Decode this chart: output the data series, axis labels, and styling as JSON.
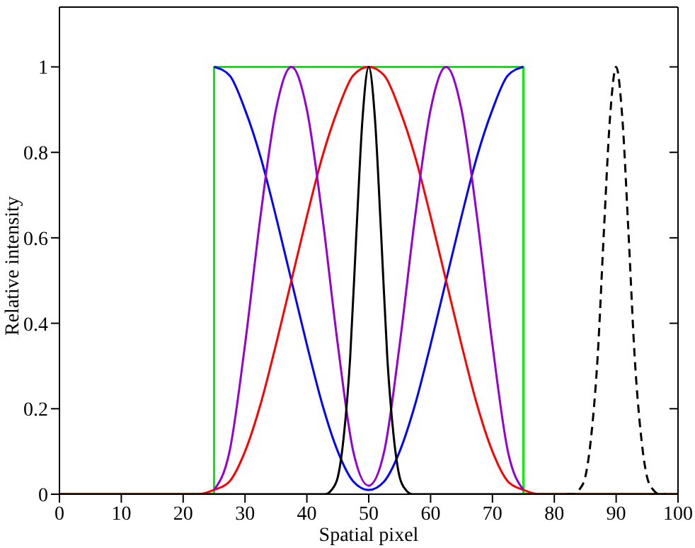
{
  "chart_data": {
    "type": "line",
    "xlabel": "Spatial pixel",
    "ylabel": "Relative intensity",
    "xlim": [
      0,
      100
    ],
    "ylim": [
      0,
      1.14
    ],
    "xticks": [
      0,
      10,
      20,
      30,
      40,
      50,
      60,
      70,
      80,
      90,
      100
    ],
    "yticks": [
      0,
      0.2,
      0.4,
      0.6,
      0.8,
      1
    ],
    "line_style": "solid",
    "series": [
      {
        "color": "#00ee00",
        "x": [
          0,
          25,
          25,
          75,
          75,
          100
        ],
        "values": [
          0,
          0,
          1,
          1,
          0,
          0
        ]
      },
      {
        "color": "#0000ff",
        "x": [
          25,
          27.5,
          30,
          32.5,
          35,
          37.5,
          40,
          42.5,
          45,
          47.5,
          50,
          52.5,
          55,
          57.5,
          60,
          62.5,
          65,
          67.5,
          70,
          72.5,
          75
        ],
        "values": [
          1,
          0.98,
          0.9,
          0.79,
          0.65,
          0.5,
          0.35,
          0.21,
          0.1,
          0.03,
          0.01,
          0.03,
          0.1,
          0.21,
          0.35,
          0.5,
          0.65,
          0.79,
          0.9,
          0.98,
          1
        ]
      },
      {
        "color": "#ff0000",
        "x": [
          0,
          20,
          22.5,
          25,
          27.5,
          30,
          32.5,
          35,
          37.5,
          40,
          42.5,
          45,
          47.5,
          50,
          52.5,
          55,
          57.5,
          60,
          62.5,
          65,
          67.5,
          70,
          72.5,
          75,
          77.5,
          80,
          100
        ],
        "values": [
          0,
          0,
          0,
          0.01,
          0.03,
          0.1,
          0.21,
          0.35,
          0.5,
          0.65,
          0.79,
          0.9,
          0.98,
          1,
          0.98,
          0.9,
          0.79,
          0.65,
          0.5,
          0.35,
          0.21,
          0.1,
          0.03,
          0.01,
          0,
          0,
          0
        ]
      },
      {
        "color": "#9400d3",
        "x": [
          25,
          27.5,
          30,
          32.5,
          35,
          37.5,
          40,
          42.5,
          45,
          47.5,
          50,
          52.5,
          55,
          57.5,
          60,
          62.5,
          65,
          67.5,
          70,
          72.5,
          75
        ],
        "values": [
          0.01,
          0.1,
          0.35,
          0.65,
          0.9,
          1,
          0.9,
          0.65,
          0.35,
          0.1,
          0.02,
          0.1,
          0.35,
          0.65,
          0.9,
          1,
          0.9,
          0.65,
          0.35,
          0.1,
          0.01
        ]
      },
      {
        "color": "#000000",
        "x": [
          0,
          42,
          43,
          44,
          45,
          46,
          47,
          48,
          49,
          50,
          51,
          52,
          53,
          54,
          55,
          56,
          57,
          58,
          100
        ],
        "values": [
          0,
          0,
          0,
          0.01,
          0.04,
          0.14,
          0.32,
          0.61,
          0.88,
          1,
          0.88,
          0.61,
          0.32,
          0.14,
          0.04,
          0.01,
          0,
          0,
          0
        ]
      },
      {
        "color": "#000000",
        "line_style": "dashed",
        "x": [
          82,
          83,
          84,
          85,
          86,
          87,
          88,
          89,
          90,
          91,
          92,
          93,
          94,
          95,
          96,
          97,
          98
        ],
        "values": [
          0,
          0,
          0.01,
          0.04,
          0.14,
          0.32,
          0.61,
          0.88,
          1,
          0.88,
          0.61,
          0.32,
          0.14,
          0.04,
          0.01,
          0,
          0
        ]
      }
    ]
  }
}
